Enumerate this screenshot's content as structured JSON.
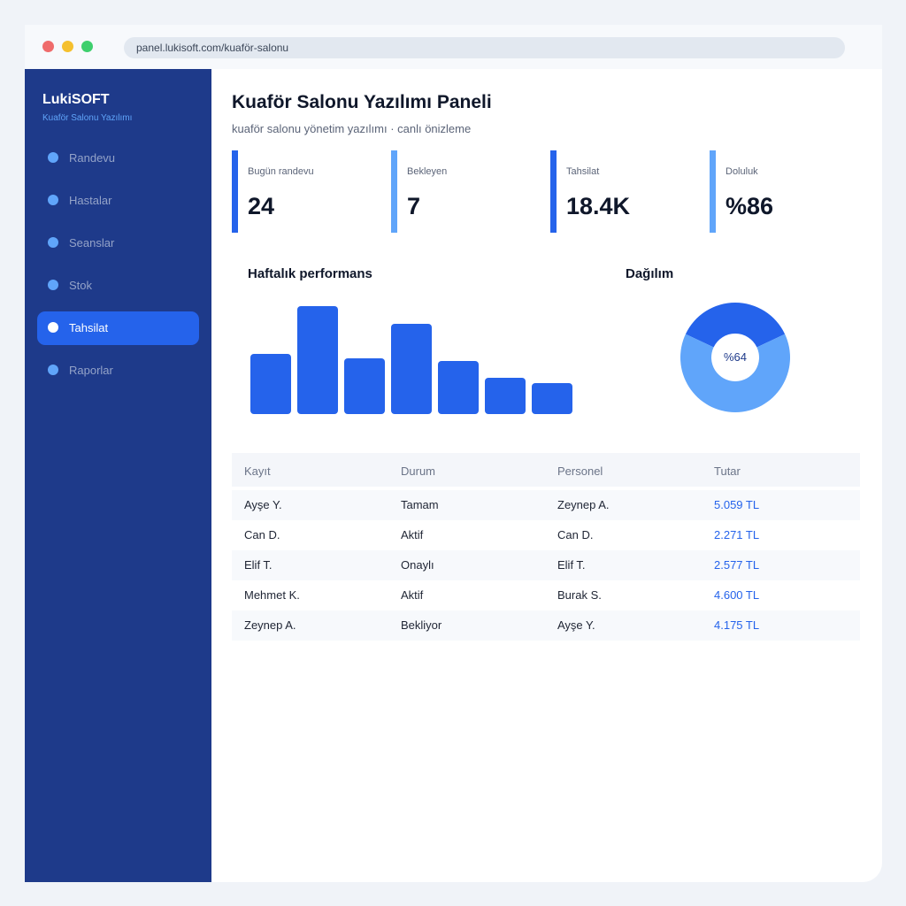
{
  "browser": {
    "url": "panel.lukisoft.com/kuaför-salonu"
  },
  "sidebar": {
    "brand": "LukiSOFT",
    "brand_sub": "Kuaför Salonu Yazılımı",
    "items": [
      {
        "label": "Randevu",
        "active": false
      },
      {
        "label": "Hastalar",
        "active": false
      },
      {
        "label": "Seanslar",
        "active": false
      },
      {
        "label": "Stok",
        "active": false
      },
      {
        "label": "Tahsilat",
        "active": true
      },
      {
        "label": "Raporlar",
        "active": false
      }
    ]
  },
  "header": {
    "title": "Kuaför Salonu Yazılımı Paneli",
    "subtitle": "kuaför salonu yönetim yazılımı · canlı önizleme"
  },
  "stats": [
    {
      "label": "Bugün randevu",
      "value": "24",
      "color": "#2563eb"
    },
    {
      "label": "Bekleyen",
      "value": "7",
      "color": "#60a5fa"
    },
    {
      "label": "Tahsilat",
      "value": "18.4K",
      "color": "#2563eb"
    },
    {
      "label": "Doluluk",
      "value": "%86",
      "color": "#60a5fa"
    }
  ],
  "performance": {
    "title": "Haftalık performans",
    "chart_data": {
      "type": "bar",
      "values": [
        68,
        122,
        63,
        102,
        60,
        41,
        35
      ],
      "ylim": [
        0,
        122
      ],
      "color": "#2563eb"
    }
  },
  "distribution": {
    "title": "Dağılım",
    "center_label": "%64",
    "chart_data": {
      "type": "pie",
      "values": [
        36,
        64
      ],
      "colors": [
        "#2563eb",
        "#60a5fa"
      ]
    }
  },
  "table": {
    "headers": [
      "Kayıt",
      "Durum",
      "Personel",
      "Tutar"
    ],
    "rows": [
      [
        "Ayşe Y.",
        "Tamam",
        "Zeynep A.",
        "5.059 TL"
      ],
      [
        "Can D.",
        "Aktif",
        "Can D.",
        "2.271 TL"
      ],
      [
        "Elif T.",
        "Onaylı",
        "Elif T.",
        "2.577 TL"
      ],
      [
        "Mehmet K.",
        "Aktif",
        "Burak S.",
        "4.600 TL"
      ],
      [
        "Zeynep A.",
        "Bekliyor",
        "Ayşe Y.",
        "4.175 TL"
      ]
    ]
  },
  "colors": {
    "sidebar": "#1e3a8a",
    "accent": "#2563eb",
    "accent_light": "#60a5fa"
  }
}
